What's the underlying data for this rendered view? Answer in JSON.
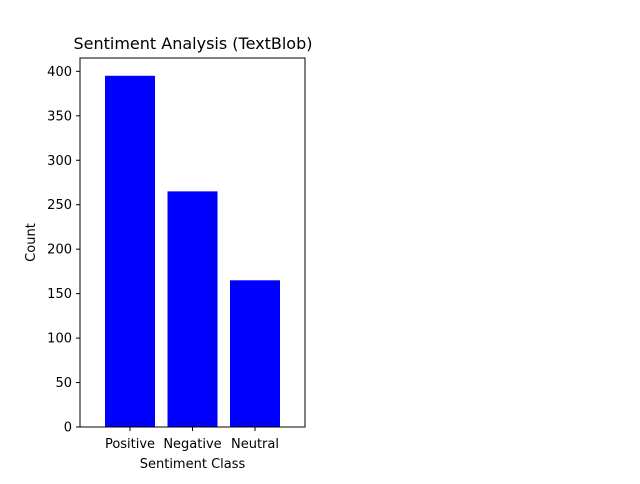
{
  "chart_data": {
    "type": "bar",
    "title": "Sentiment Analysis (TextBlob)",
    "xlabel": "Sentiment Class",
    "ylabel": "Count",
    "categories": [
      "Positive",
      "Negative",
      "Neutral"
    ],
    "values": [
      395,
      265,
      165
    ],
    "ylim": [
      0,
      415
    ],
    "yticks": [
      0,
      50,
      100,
      150,
      200,
      250,
      300,
      350,
      400
    ],
    "bar_color": "#0000ff",
    "grid": false
  }
}
